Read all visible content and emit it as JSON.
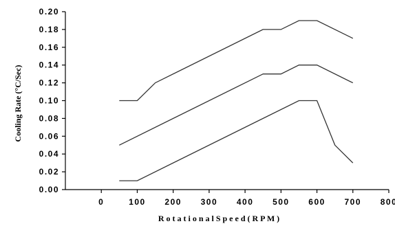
{
  "chart_data": {
    "type": "line",
    "xlabel": "R o t a t i o n a l   S p e e d  ( R P M )",
    "ylabel": "Cooling Rate (°C/Sec)",
    "xlim": [
      -100,
      800
    ],
    "ylim": [
      0,
      0.2
    ],
    "x_ticks": [
      "0",
      "100",
      "200",
      "300",
      "400",
      "500",
      "600",
      "700",
      "800"
    ],
    "y_ticks": [
      "0.00",
      "0.02",
      "0.04",
      "0.06",
      "0.08",
      "0.10",
      "0.12",
      "0.14",
      "0.16",
      "0.18",
      "0.20"
    ],
    "grid": false,
    "series": [
      {
        "x": [
          50,
          100,
          150,
          450,
          500,
          550,
          600,
          700
        ],
        "values": [
          0.1,
          0.1,
          0.12,
          0.18,
          0.18,
          0.19,
          0.19,
          0.17
        ]
      },
      {
        "x": [
          50,
          450,
          500,
          550,
          600,
          700
        ],
        "values": [
          0.05,
          0.13,
          0.13,
          0.14,
          0.14,
          0.12
        ]
      },
      {
        "x": [
          50,
          100,
          550,
          600,
          650,
          700
        ],
        "values": [
          0.01,
          0.01,
          0.1,
          0.1,
          0.05,
          0.03
        ]
      }
    ]
  }
}
